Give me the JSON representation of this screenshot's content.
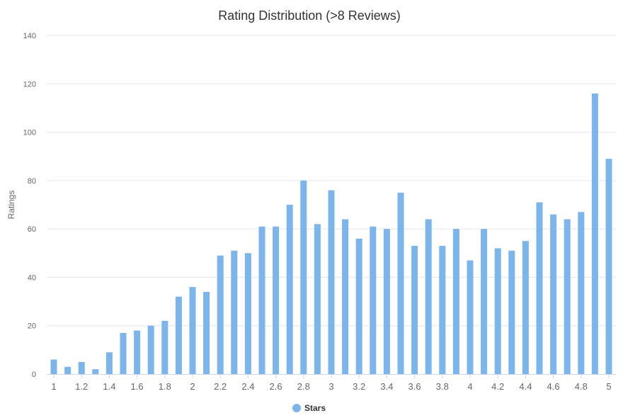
{
  "chart_data": {
    "type": "bar",
    "title": "Rating Distribution (>8 Reviews)",
    "xlabel": "",
    "ylabel": "Ratings",
    "ylim": [
      0,
      140
    ],
    "yticks": [
      "0",
      "20",
      "40",
      "60",
      "80",
      "100",
      "120",
      "140"
    ],
    "xtick_labels": [
      "1",
      "1.2",
      "1.4",
      "1.6",
      "1.8",
      "2",
      "2.2",
      "2.4",
      "2.6",
      "2.8",
      "3",
      "3.2",
      "3.4",
      "3.6",
      "3.8",
      "4",
      "4.2",
      "4.4",
      "4.6",
      "4.8",
      "5"
    ],
    "categories": [
      1.0,
      1.1,
      1.2,
      1.3,
      1.4,
      1.5,
      1.6,
      1.7,
      1.8,
      1.9,
      2.0,
      2.1,
      2.2,
      2.3,
      2.4,
      2.5,
      2.6,
      2.7,
      2.8,
      2.9,
      3.0,
      3.1,
      3.2,
      3.3,
      3.4,
      3.5,
      3.6,
      3.7,
      3.8,
      3.9,
      4.0,
      4.1,
      4.2,
      4.3,
      4.4,
      4.5,
      4.6,
      4.7,
      4.8,
      4.9,
      5.0
    ],
    "series": [
      {
        "name": "Stars",
        "color": "#7cb5ec",
        "values": [
          6,
          3,
          5,
          2,
          9,
          17,
          18,
          20,
          22,
          32,
          36,
          34,
          49,
          51,
          50,
          61,
          61,
          70,
          80,
          62,
          76,
          64,
          56,
          61,
          60,
          75,
          53,
          64,
          53,
          60,
          47,
          60,
          52,
          51,
          55,
          71,
          66,
          64,
          67,
          116,
          89
        ]
      }
    ],
    "legend": {
      "position": "bottom-center",
      "label": "Stars"
    },
    "grid": true
  }
}
